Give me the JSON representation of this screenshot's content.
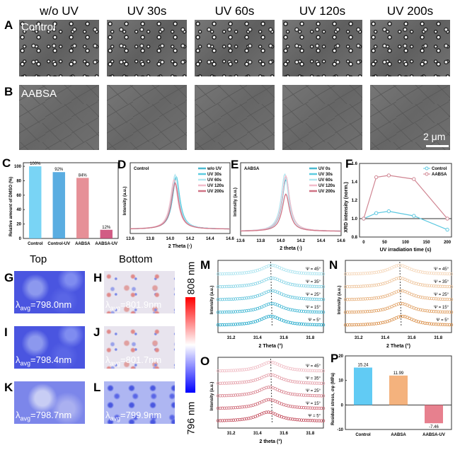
{
  "microscopy": {
    "columns": [
      "w/o UV",
      "UV 30s",
      "UV 60s",
      "UV 120s",
      "UV 200s"
    ],
    "rows": [
      {
        "panel": "A",
        "label": "Control"
      },
      {
        "panel": "B",
        "label": "AABSA"
      }
    ],
    "scale_bar": "2 μm"
  },
  "maps": {
    "top_title": "Top",
    "bottom_title": "Bottom",
    "symbol": "λ",
    "sub": "avg",
    "panels": [
      {
        "panel": "G",
        "value": "=798.0nm"
      },
      {
        "panel": "H",
        "value": "=801.9nm"
      },
      {
        "panel": "I",
        "value": "=798.4nm"
      },
      {
        "panel": "J",
        "value": "=801.7nm"
      },
      {
        "panel": "K",
        "value": "=798.7nm"
      },
      {
        "panel": "L",
        "value": "=799.9nm"
      }
    ],
    "colorbar": {
      "max": "808 nm",
      "min": "796 nm",
      "colors": [
        "#ff0000",
        "#ffffff",
        "#0000ff"
      ]
    }
  },
  "chart_data": [
    {
      "panel": "C",
      "type": "bar",
      "categories": [
        "Control",
        "Control-UV",
        "AABSA",
        "AABSA-UV"
      ],
      "values": [
        100,
        92,
        84,
        12
      ],
      "data_labels": [
        "100%",
        "92%",
        "84%",
        "12%"
      ],
      "ylabel": "Relative amount of DMSO (%)",
      "ylim": [
        0,
        105
      ],
      "yticks": [
        0,
        20,
        40,
        60,
        80,
        100
      ],
      "colors": [
        "#62cdf3",
        "#3d9fdc",
        "#e27c85",
        "#c9406e"
      ]
    },
    {
      "panel": "D",
      "type": "line",
      "inset": "Control",
      "xlabel": "2 Theta (·)",
      "ylabel": "Intensity (a.u.)",
      "xlim": [
        13.6,
        14.6
      ],
      "xticks": [
        "13.6",
        "13.8",
        "14.0",
        "14.2",
        "14.4",
        "14.6"
      ],
      "legend": "top-right",
      "series": [
        {
          "name": "w/o UV",
          "peak": 14.06,
          "height": 0.93,
          "color": "#4bb8cf"
        },
        {
          "name": "UV 30s",
          "peak": 14.06,
          "height": 0.96,
          "color": "#5ccbe0"
        },
        {
          "name": "UV 60s",
          "peak": 14.05,
          "height": 0.99,
          "color": "#b5e6f0"
        },
        {
          "name": "UV 120s",
          "peak": 14.04,
          "height": 0.9,
          "color": "#f2bccb"
        },
        {
          "name": "UV 200s",
          "peak": 14.05,
          "height": 0.84,
          "color": "#cf7385"
        }
      ]
    },
    {
      "panel": "E",
      "type": "line",
      "inset": "AABSA",
      "xlabel": "2 theta (·)",
      "ylabel": "Intensity (a.u.)",
      "xlim": [
        13.6,
        14.6
      ],
      "xticks": [
        "13.6",
        "13.8",
        "14.0",
        "14.2",
        "14.4",
        "14.6"
      ],
      "legend": "top-right",
      "series": [
        {
          "name": "UV 0s",
          "peak": 14.05,
          "height": 0.9,
          "color": "#4bb8cf"
        },
        {
          "name": "UV 30s",
          "peak": 14.05,
          "height": 0.96,
          "color": "#5ccbe0"
        },
        {
          "name": "UV 60s",
          "peak": 14.04,
          "height": 1.0,
          "color": "#b5e6f0"
        },
        {
          "name": "UV 120s",
          "peak": 14.05,
          "height": 0.97,
          "color": "#f2bccb"
        },
        {
          "name": "UV 200s",
          "peak": 14.05,
          "height": 0.65,
          "color": "#cf7385"
        }
      ]
    },
    {
      "panel": "F",
      "type": "line",
      "xlabel": "UV irradiation time (s)",
      "ylabel": "XRD intensity (norm.)",
      "xlim": [
        -10,
        210
      ],
      "ylim": [
        0.8,
        1.6
      ],
      "xticks": [
        0,
        50,
        100,
        150,
        200
      ],
      "yticks": [
        0.8,
        1.0,
        1.2,
        1.4,
        1.6
      ],
      "reference_line": 1.0,
      "legend": "top-right",
      "x": [
        0,
        30,
        60,
        120,
        200
      ],
      "series": [
        {
          "name": "Control",
          "values": [
            1.0,
            1.06,
            1.08,
            1.03,
            0.88
          ],
          "color": "#5cc8e0"
        },
        {
          "name": "AABSA",
          "values": [
            1.0,
            1.45,
            1.47,
            1.43,
            1.0
          ],
          "color": "#d08592"
        }
      ]
    },
    {
      "panel": "M",
      "type": "scatter",
      "xlabel": "2 Theta (°)",
      "ylabel": "Intensity (a.u.)",
      "xlim": [
        31.1,
        31.9
      ],
      "xticks": [
        "31.2",
        "31.4",
        "31.6",
        "31.8"
      ],
      "peak_line": 31.5,
      "series": [
        {
          "name": "Ψ = 45°",
          "peak": 31.51
        },
        {
          "name": "Ψ = 35°",
          "peak": 31.51
        },
        {
          "name": "Ψ = 25°",
          "peak": 31.51
        },
        {
          "name": "Ψ = 15°",
          "peak": 31.51
        },
        {
          "name": "Ψ = 5°",
          "peak": 31.5
        }
      ],
      "colors": [
        "#a9e3ef",
        "#1ca7c9"
      ]
    },
    {
      "panel": "N",
      "type": "scatter",
      "xlabel": "2 Theta (°)",
      "ylabel": "Intensity (a.u.)",
      "xlim": [
        31.1,
        31.9
      ],
      "xticks": [
        "31.2",
        "31.4",
        "31.6",
        "31.8"
      ],
      "peak_line": 31.51,
      "series": [
        {
          "name": "Ψ = 45°",
          "peak": 31.51
        },
        {
          "name": "Ψ = 35°",
          "peak": 31.51
        },
        {
          "name": "Ψ = 25°",
          "peak": 31.52
        },
        {
          "name": "Ψ = 15°",
          "peak": 31.52
        },
        {
          "name": "Ψ = 5°",
          "peak": 31.53
        }
      ],
      "colors": [
        "#f5d6b8",
        "#d98c44"
      ]
    },
    {
      "panel": "O",
      "type": "scatter",
      "xlabel": "2 theta (°)",
      "ylabel": "Intensity (a.u.)",
      "xlim": [
        31.1,
        31.9
      ],
      "xticks": [
        "31.2",
        "31.4",
        "31.6",
        "31.8"
      ],
      "peak_line": 31.5,
      "series": [
        {
          "name": "Ψ = 45°",
          "peak": 31.5
        },
        {
          "name": "Ψ = 35°",
          "peak": 31.5
        },
        {
          "name": "Ψ = 25°",
          "peak": 31.49
        },
        {
          "name": "Ψ = 15°",
          "peak": 31.49
        },
        {
          "name": "Ψ = 5°",
          "peak": 31.48
        }
      ],
      "colors": [
        "#f0bcc4",
        "#c24a5a"
      ]
    },
    {
      "panel": "P",
      "type": "bar",
      "categories": [
        "Control",
        "AABSA",
        "AABSA-UV"
      ],
      "values": [
        15.24,
        11.99,
        -7.46
      ],
      "data_labels": [
        "15.24",
        "11.99",
        "-7.46"
      ],
      "ylabel": "Residual stress, σφ (MPa)",
      "ylim": [
        -10,
        20
      ],
      "yticks": [
        -10,
        0,
        10,
        20
      ],
      "colors": [
        "#45c2f2",
        "#f2a466",
        "#e36a7a"
      ]
    }
  ]
}
